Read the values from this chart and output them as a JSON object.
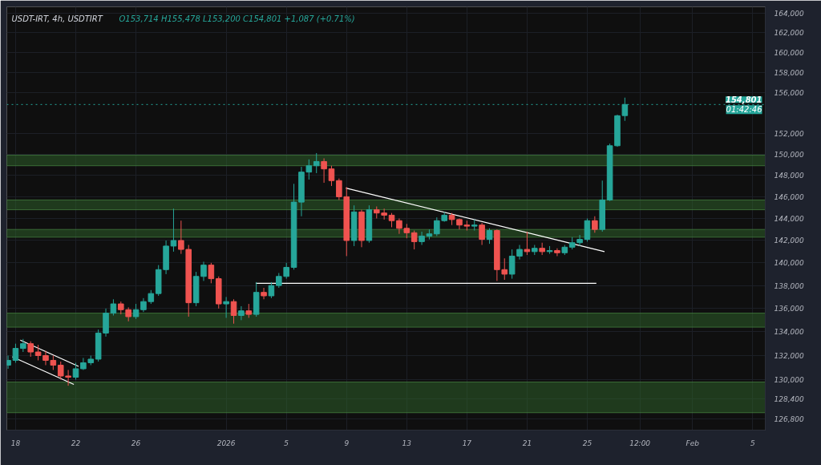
{
  "chart_data": {
    "type": "candlestick",
    "title": "USDT-IRT, 4h, USDTIRT",
    "subtitle": "O153,714  H155,478  L153,200  C154,801  +1,087 (+0.71%)",
    "x": [
      "2025-12-17T12:00",
      "2025-12-18T00:00",
      "2025-12-18T12:00",
      "2025-12-19T00:00",
      "2025-12-19T12:00",
      "2025-12-20T00:00",
      "2025-12-20T12:00",
      "2025-12-21T00:00",
      "2025-12-21T12:00",
      "2025-12-22T00:00",
      "2025-12-22T12:00",
      "2025-12-23T00:00",
      "2025-12-23T12:00",
      "2025-12-24T00:00",
      "2025-12-24T12:00",
      "2025-12-25T00:00",
      "2025-12-25T12:00",
      "2025-12-26T00:00",
      "2025-12-26T12:00",
      "2025-12-27T00:00",
      "2025-12-27T12:00",
      "2025-12-28T00:00",
      "2025-12-28T12:00",
      "2025-12-29T00:00",
      "2025-12-29T12:00",
      "2025-12-30T00:00",
      "2025-12-30T12:00",
      "2025-12-31T00:00",
      "2025-12-31T12:00",
      "2026-01-01T00:00",
      "2026-01-01T12:00",
      "2026-01-02T00:00",
      "2026-01-02T12:00",
      "2026-01-03T00:00",
      "2026-01-03T12:00",
      "2026-01-04T00:00",
      "2026-01-04T12:00",
      "2026-01-05T00:00",
      "2026-01-05T12:00",
      "2026-01-06T00:00",
      "2026-01-06T12:00",
      "2026-01-07T00:00",
      "2026-01-07T12:00",
      "2026-01-08T00:00",
      "2026-01-08T12:00",
      "2026-01-09T00:00",
      "2026-01-09T12:00",
      "2026-01-10T00:00",
      "2026-01-10T12:00",
      "2026-01-11T00:00",
      "2026-01-11T12:00",
      "2026-01-12T00:00",
      "2026-01-12T12:00",
      "2026-01-13T00:00",
      "2026-01-13T12:00",
      "2026-01-14T00:00",
      "2026-01-14T12:00",
      "2026-01-15T00:00",
      "2026-01-15T12:00",
      "2026-01-16T00:00",
      "2026-01-16T12:00",
      "2026-01-17T00:00",
      "2026-01-17T12:00",
      "2026-01-18T00:00",
      "2026-01-18T12:00",
      "2026-01-19T00:00",
      "2026-01-19T12:00",
      "2026-01-20T00:00",
      "2026-01-20T12:00",
      "2026-01-21T00:00",
      "2026-01-21T12:00",
      "2026-01-22T00:00",
      "2026-01-22T12:00",
      "2026-01-23T00:00",
      "2026-01-23T12:00",
      "2026-01-24T00:00",
      "2026-01-24T12:00",
      "2026-01-25T00:00",
      "2026-01-25T12:00",
      "2026-01-26T00:00",
      "2026-01-26T12:00",
      "2026-01-27T00:00",
      "2026-01-27T12:00"
    ],
    "ohlc": [
      [
        131200,
        132000,
        130900,
        131600
      ],
      [
        131600,
        133000,
        131400,
        132600
      ],
      [
        132600,
        133400,
        132300,
        133000
      ],
      [
        133000,
        133200,
        131900,
        132300
      ],
      [
        132300,
        132900,
        131600,
        132000
      ],
      [
        132000,
        132400,
        131200,
        131600
      ],
      [
        131600,
        132000,
        130800,
        131200
      ],
      [
        131200,
        131500,
        130000,
        130300
      ],
      [
        130300,
        130800,
        129500,
        130200
      ],
      [
        130200,
        131400,
        130000,
        130900
      ],
      [
        130900,
        131800,
        130800,
        131400
      ],
      [
        131400,
        132000,
        131200,
        131700
      ],
      [
        131700,
        134200,
        131500,
        133900
      ],
      [
        133900,
        136000,
        133600,
        135600
      ],
      [
        135600,
        136800,
        135400,
        136400
      ],
      [
        136400,
        136600,
        135500,
        135900
      ],
      [
        135900,
        136100,
        134900,
        135300
      ],
      [
        135300,
        136400,
        135100,
        135900
      ],
      [
        135900,
        136900,
        135700,
        136600
      ],
      [
        136600,
        137600,
        136400,
        137300
      ],
      [
        137300,
        139800,
        137100,
        139400
      ],
      [
        139400,
        142000,
        139000,
        141500
      ],
      [
        141500,
        144900,
        141000,
        142000
      ],
      [
        142000,
        143800,
        140800,
        141200
      ],
      [
        141200,
        141600,
        135300,
        136500
      ],
      [
        136500,
        139200,
        136200,
        138800
      ],
      [
        138800,
        140100,
        138400,
        139800
      ],
      [
        139800,
        140000,
        138200,
        138600
      ],
      [
        138600,
        138800,
        136000,
        136400
      ],
      [
        136400,
        137000,
        135200,
        136600
      ],
      [
        136600,
        136800,
        134700,
        135400
      ],
      [
        135400,
        136200,
        135000,
        135800
      ],
      [
        135800,
        136400,
        135200,
        135500
      ],
      [
        135500,
        138300,
        135300,
        137400
      ],
      [
        137400,
        137800,
        136800,
        137100
      ],
      [
        137100,
        138300,
        136900,
        138000
      ],
      [
        138000,
        139100,
        137800,
        138800
      ],
      [
        138800,
        140000,
        138600,
        139600
      ],
      [
        139600,
        147200,
        139400,
        145500
      ],
      [
        145500,
        148800,
        144200,
        148300
      ],
      [
        148300,
        149500,
        147600,
        148900
      ],
      [
        148900,
        150100,
        148200,
        149300
      ],
      [
        149300,
        149600,
        147300,
        148600
      ],
      [
        148600,
        148900,
        147000,
        147500
      ],
      [
        147500,
        147700,
        145700,
        146000
      ],
      [
        146000,
        146900,
        140600,
        142000
      ],
      [
        142000,
        145200,
        141500,
        144600
      ],
      [
        144600,
        144800,
        141400,
        142000
      ],
      [
        142000,
        145200,
        141800,
        144800
      ],
      [
        144800,
        145100,
        144000,
        144500
      ],
      [
        144500,
        144900,
        143900,
        144300
      ],
      [
        144300,
        144500,
        143200,
        143800
      ],
      [
        143800,
        144000,
        142600,
        143100
      ],
      [
        143100,
        143500,
        142200,
        142700
      ],
      [
        142700,
        142900,
        141200,
        141900
      ],
      [
        141900,
        142800,
        141600,
        142400
      ],
      [
        142400,
        143000,
        142100,
        142600
      ],
      [
        142600,
        144100,
        142400,
        143800
      ],
      [
        143800,
        144600,
        143700,
        144300
      ],
      [
        144300,
        144500,
        143400,
        143900
      ],
      [
        143900,
        144000,
        143000,
        143400
      ],
      [
        143400,
        143800,
        142900,
        143300
      ],
      [
        143300,
        143900,
        142900,
        143400
      ],
      [
        143400,
        143600,
        141600,
        142100
      ],
      [
        142100,
        143100,
        141700,
        142900
      ],
      [
        142900,
        143000,
        138400,
        139400
      ],
      [
        139400,
        140400,
        138500,
        139000
      ],
      [
        139000,
        141200,
        138600,
        140600
      ],
      [
        140600,
        141600,
        140300,
        141200
      ],
      [
        141200,
        142800,
        140700,
        141000
      ],
      [
        141000,
        141600,
        140700,
        141300
      ],
      [
        141300,
        141800,
        140700,
        141000
      ],
      [
        141000,
        141500,
        140800,
        141100
      ],
      [
        141100,
        141300,
        140600,
        140900
      ],
      [
        140900,
        141600,
        140700,
        141400
      ],
      [
        141400,
        142300,
        141200,
        141800
      ],
      [
        141800,
        142500,
        141500,
        142100
      ],
      [
        142100,
        144000,
        141900,
        143800
      ],
      [
        143800,
        144200,
        142700,
        143000
      ],
      [
        143000,
        147500,
        142800,
        145700
      ],
      [
        145700,
        151000,
        145600,
        150800
      ],
      [
        150800,
        153800,
        150700,
        153700
      ],
      [
        153714,
        155478,
        153200,
        154801
      ]
    ],
    "colors": [
      "#26a69a",
      "#26a69a",
      "#26a69a",
      "#ef5350",
      "#ef5350",
      "#ef5350",
      "#ef5350",
      "#ef5350",
      "#ef5350",
      "#26a69a",
      "#26a69a",
      "#26a69a",
      "#26a69a",
      "#26a69a",
      "#26a69a",
      "#ef5350",
      "#ef5350",
      "#26a69a",
      "#26a69a",
      "#26a69a",
      "#26a69a",
      "#26a69a",
      "#26a69a",
      "#ef5350",
      "#ef5350",
      "#26a69a",
      "#26a69a",
      "#ef5350",
      "#ef5350",
      "#26a69a",
      "#ef5350",
      "#26a69a",
      "#ef5350",
      "#26a69a",
      "#ef5350",
      "#26a69a",
      "#26a69a",
      "#26a69a",
      "#26a69a",
      "#26a69a",
      "#26a69a",
      "#26a69a",
      "#ef5350",
      "#ef5350",
      "#ef5350",
      "#ef5350",
      "#26a69a",
      "#ef5350",
      "#26a69a",
      "#ef5350",
      "#ef5350",
      "#ef5350",
      "#ef5350",
      "#ef5350",
      "#ef5350",
      "#26a69a",
      "#26a69a",
      "#26a69a",
      "#26a69a",
      "#ef5350",
      "#ef5350",
      "#ef5350",
      "#26a69a",
      "#ef5350",
      "#26a69a",
      "#ef5350",
      "#ef5350",
      "#26a69a",
      "#26a69a",
      "#ef5350",
      "#26a69a",
      "#ef5350",
      "#26a69a",
      "#ef5350",
      "#26a69a",
      "#26a69a",
      "#26a69a",
      "#26a69a",
      "#ef5350",
      "#26a69a",
      "#26a69a",
      "#26a69a",
      "#26a69a"
    ],
    "series": [
      {
        "type": "line",
        "color": "#ffffff",
        "x": [
          "2025-12-18T07:30",
          "2025-12-22T04:30"
        ],
        "values": [
          133300,
          131100
        ]
      },
      {
        "type": "line",
        "color": "#ffffff",
        "x": [
          "2025-12-17T18:40",
          "2025-12-21T21:00"
        ],
        "values": [
          131900,
          129600
        ]
      },
      {
        "type": "line",
        "color": "#ffffff",
        "x": [
          "2026-01-08T23:00",
          "2026-01-26T03:30"
        ],
        "values": [
          146800,
          141000
        ]
      },
      {
        "type": "line",
        "color": "#ffffff",
        "x": [
          "2026-01-02T23:00",
          "2026-01-25T14:30"
        ],
        "values": [
          138200,
          138200
        ]
      }
    ],
    "bands": [
      {
        "axis": "y",
        "from": 148900,
        "to": 149900,
        "color": "#2e5e2a"
      },
      {
        "axis": "y",
        "from": 144800,
        "to": 145700,
        "color": "#2e5e2a"
      },
      {
        "axis": "y",
        "from": 142300,
        "to": 143000,
        "color": "#2e5e2a"
      },
      {
        "axis": "y",
        "from": 134400,
        "to": 135600,
        "color": "#2e5e2a"
      },
      {
        "axis": "y",
        "from": 127300,
        "to": 129800,
        "color": "#2e5e2a"
      }
    ],
    "ref_lines": [
      {
        "axis": "y",
        "value": 154801,
        "label": "154,801",
        "color": "#26a69a",
        "line_style": "dotted"
      }
    ],
    "annotations": [
      "01:42:46"
    ],
    "log": true,
    "grid": true,
    "xlim": [
      "2025-12-17T10:00",
      "2026-02-05T20:00"
    ],
    "ylim": [
      125900,
      164700
    ],
    "xticks": [
      {
        "value": "2025-12-18",
        "label": "18"
      },
      {
        "value": "2025-12-22",
        "label": "22"
      },
      {
        "value": "2025-12-26",
        "label": "26"
      },
      {
        "value": "2026-01-01",
        "label": "2026"
      },
      {
        "value": "2026-01-05",
        "label": "5"
      },
      {
        "value": "2026-01-09",
        "label": "9"
      },
      {
        "value": "2026-01-13",
        "label": "13"
      },
      {
        "value": "2026-01-17",
        "label": "17"
      },
      {
        "value": "2026-01-21",
        "label": "21"
      },
      {
        "value": "2026-01-25",
        "label": "25"
      },
      {
        "value": "2026-01-28T12:00",
        "label": "12:00"
      },
      {
        "value": "2026-02-01",
        "label": "Feb"
      },
      {
        "value": "2026-02-05",
        "label": "5"
      }
    ],
    "yticks": [
      {
        "value": 126800,
        "label": "126,800"
      },
      {
        "value": 128400,
        "label": "128,400"
      },
      {
        "value": 130000,
        "label": "130,000"
      },
      {
        "value": 132000,
        "label": "132,000"
      },
      {
        "value": 134000,
        "label": "134,000"
      },
      {
        "value": 136000,
        "label": "136,000"
      },
      {
        "value": 138000,
        "label": "138,000"
      },
      {
        "value": 140000,
        "label": "140,000"
      },
      {
        "value": 142000,
        "label": "142,000"
      },
      {
        "value": 144000,
        "label": "144,000"
      },
      {
        "value": 146000,
        "label": "146,000"
      },
      {
        "value": 148000,
        "label": "148,000"
      },
      {
        "value": 150000,
        "label": "150,000"
      },
      {
        "value": 152000,
        "label": "152,000"
      },
      {
        "value": 156000,
        "label": "156,000"
      },
      {
        "value": 158000,
        "label": "158,000"
      },
      {
        "value": 160000,
        "label": "160,000"
      },
      {
        "value": 162000,
        "label": "162,000"
      },
      {
        "value": 164000,
        "label": "164,000"
      }
    ]
  }
}
